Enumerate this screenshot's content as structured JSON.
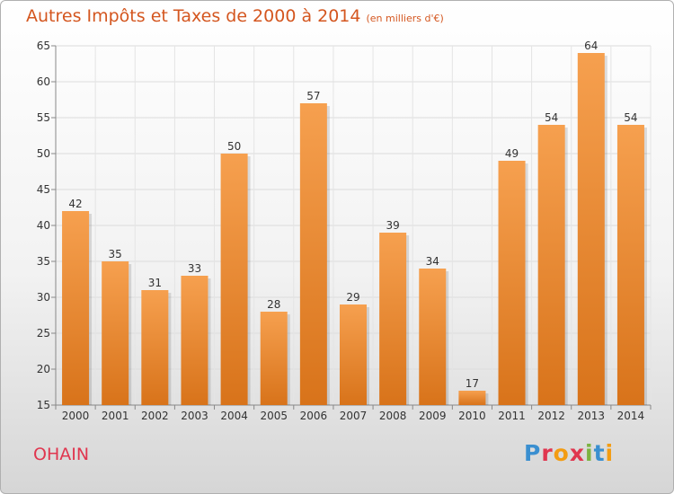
{
  "header": {
    "title": "Autres Impôts et Taxes de 2000 à 2014",
    "subtitle": "(en milliers d'€)"
  },
  "footer": {
    "city": "OHAIN",
    "brand": "Proxiti"
  },
  "colors": {
    "bar_top": "#f6a04f",
    "bar_bottom": "#d8731a",
    "title": "#d4561f",
    "city": "#e0364f"
  },
  "chart_data": {
    "type": "bar",
    "categories": [
      "2000",
      "2001",
      "2002",
      "2003",
      "2004",
      "2005",
      "2006",
      "2007",
      "2008",
      "2009",
      "2010",
      "2011",
      "2012",
      "2013",
      "2014"
    ],
    "values": [
      42,
      35,
      31,
      33,
      50,
      28,
      57,
      29,
      39,
      34,
      17,
      49,
      54,
      64,
      54
    ],
    "title": "Autres Impôts et Taxes de 2000 à 2014",
    "xlabel": "",
    "ylabel": "",
    "ylim": [
      15,
      65
    ],
    "yticks": [
      15,
      20,
      25,
      30,
      35,
      40,
      45,
      50,
      55,
      60,
      65
    ],
    "grid": true,
    "legend": "none"
  }
}
